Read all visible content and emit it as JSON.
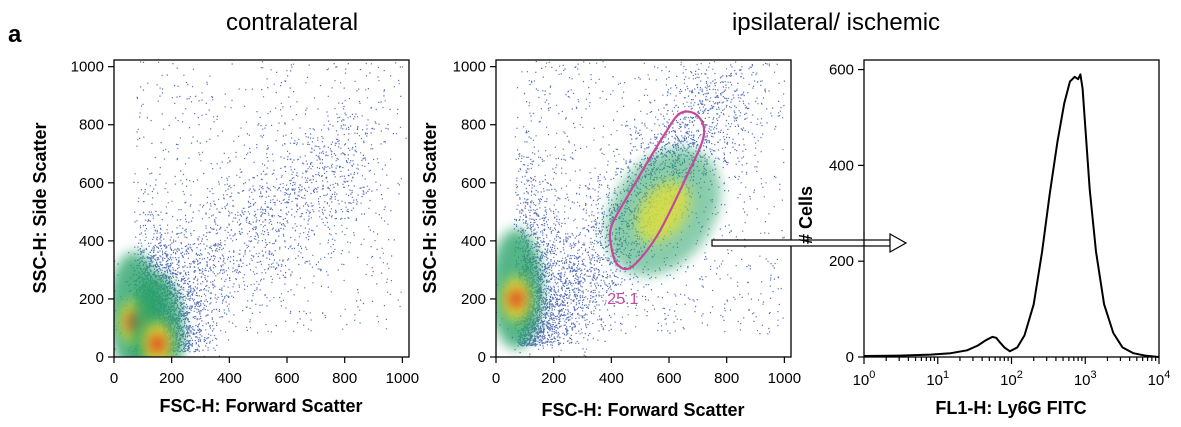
{
  "figure": {
    "panel_letter": "a",
    "titles": [
      "contralateral",
      "ipsilateral/ ischemic"
    ]
  },
  "colors": {
    "density_low": "#1f3fa0",
    "density_mid": "#2aa36b",
    "density_high": "#e8e232",
    "density_peak": "#e33a1d",
    "gate": "#c6489a",
    "histogram": "#000000"
  },
  "chart_data": [
    {
      "type": "scatter",
      "subtype": "density-dot-plot",
      "title": "contralateral",
      "xlabel": "FSC-H: Forward Scatter",
      "ylabel": "SSC-H: Side Scatter",
      "xlim": [
        0,
        1023
      ],
      "ylim": [
        0,
        1023
      ],
      "xticks": [
        0,
        200,
        400,
        600,
        800,
        1000
      ],
      "yticks": [
        0,
        200,
        400,
        600,
        800,
        1000
      ],
      "hotspots": [
        {
          "x": 70,
          "y": 120,
          "level": "peak"
        },
        {
          "x": 150,
          "y": 45,
          "level": "peak"
        }
      ],
      "gate": null
    },
    {
      "type": "scatter",
      "subtype": "density-dot-plot",
      "title": "ipsilateral/ ischemic",
      "xlabel": "FSC-H: Forward Scatter",
      "ylabel": "SSC-H: Side Scatter",
      "xlim": [
        0,
        1023
      ],
      "ylim": [
        0,
        1023
      ],
      "xticks": [
        0,
        200,
        400,
        600,
        800,
        1000
      ],
      "yticks": [
        0,
        200,
        400,
        600,
        800,
        1000
      ],
      "hotspots": [
        {
          "x": 70,
          "y": 200,
          "level": "peak"
        },
        {
          "x": 580,
          "y": 500,
          "level": "high"
        }
      ],
      "gate": {
        "label": "25.1",
        "polygon": [
          [
            400,
            380
          ],
          [
            420,
            320
          ],
          [
            470,
            310
          ],
          [
            560,
            420
          ],
          [
            660,
            620
          ],
          [
            720,
            760
          ],
          [
            700,
            830
          ],
          [
            640,
            840
          ],
          [
            580,
            760
          ],
          [
            460,
            560
          ],
          [
            400,
            450
          ]
        ]
      }
    },
    {
      "type": "line",
      "subtype": "histogram",
      "xlabel": "FL1-H: Ly6G FITC",
      "ylabel": "# Cells",
      "xscale": "log",
      "xlim": [
        1,
        10000
      ],
      "ylim": [
        0,
        620
      ],
      "xticks": [
        {
          "value": 1,
          "base": "10",
          "exp": "0"
        },
        {
          "value": 10,
          "base": "10",
          "exp": "1"
        },
        {
          "value": 100,
          "base": "10",
          "exp": "2"
        },
        {
          "value": 1000,
          "base": "10",
          "exp": "3"
        },
        {
          "value": 10000,
          "base": "10",
          "exp": "4"
        }
      ],
      "yticks": [
        0,
        200,
        400,
        600
      ],
      "series": [
        {
          "x": [
            1,
            3,
            8,
            15,
            25,
            35,
            45,
            55,
            62,
            70,
            80,
            95,
            120,
            150,
            200,
            260,
            330,
            420,
            520,
            620,
            720,
            800,
            860,
            920,
            1000,
            1150,
            1400,
            1800,
            2400,
            3200,
            4500,
            6500,
            10000
          ],
          "y": [
            2,
            3,
            5,
            8,
            14,
            24,
            35,
            42,
            40,
            30,
            20,
            12,
            20,
            45,
            110,
            220,
            340,
            450,
            530,
            575,
            585,
            580,
            590,
            560,
            480,
            350,
            220,
            110,
            50,
            20,
            8,
            3,
            0
          ]
        }
      ]
    }
  ]
}
